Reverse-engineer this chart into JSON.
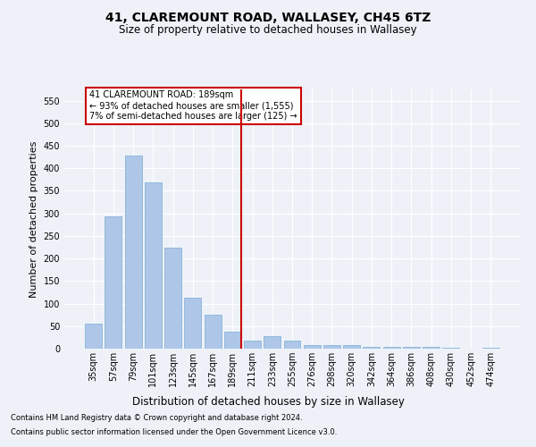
{
  "title": "41, CLAREMOUNT ROAD, WALLASEY, CH45 6TZ",
  "subtitle": "Size of property relative to detached houses in Wallasey",
  "xlabel": "Distribution of detached houses by size in Wallasey",
  "ylabel": "Number of detached properties",
  "footnote1": "Contains HM Land Registry data © Crown copyright and database right 2024.",
  "footnote2": "Contains public sector information licensed under the Open Government Licence v3.0.",
  "categories": [
    "35sqm",
    "57sqm",
    "79sqm",
    "101sqm",
    "123sqm",
    "145sqm",
    "167sqm",
    "189sqm",
    "211sqm",
    "233sqm",
    "255sqm",
    "276sqm",
    "298sqm",
    "320sqm",
    "342sqm",
    "364sqm",
    "386sqm",
    "408sqm",
    "430sqm",
    "452sqm",
    "474sqm"
  ],
  "values": [
    55,
    293,
    428,
    368,
    225,
    113,
    75,
    38,
    18,
    28,
    18,
    7,
    8,
    8,
    4,
    4,
    4,
    3,
    2,
    0,
    2
  ],
  "bar_color": "#aec6e8",
  "bar_edge_color": "#7aaed0",
  "vline_index": 7,
  "vline_color": "#cc0000",
  "ylim": [
    0,
    575
  ],
  "yticks": [
    0,
    50,
    100,
    150,
    200,
    250,
    300,
    350,
    400,
    450,
    500,
    550
  ],
  "annotation_text": "41 CLAREMOUNT ROAD: 189sqm\n← 93% of detached houses are smaller (1,555)\n7% of semi-detached houses are larger (125) →",
  "annotation_box_color": "#cc0000",
  "background_color": "#eef2f8",
  "grid_color": "#ffffff",
  "title_fontsize": 10,
  "subtitle_fontsize": 8.5,
  "ylabel_fontsize": 8,
  "xlabel_fontsize": 8.5,
  "tick_fontsize": 7,
  "annot_fontsize": 7,
  "footnote_fontsize": 6
}
